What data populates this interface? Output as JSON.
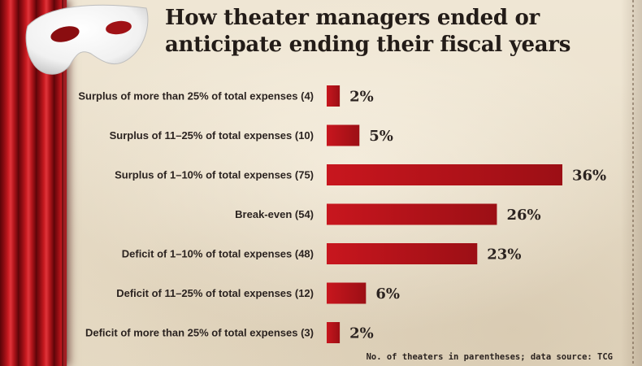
{
  "title_lines": [
    "How theater managers ended or",
    "anticipate ending their fiscal years"
  ],
  "chart_data": {
    "type": "bar",
    "orientation": "horizontal",
    "categories": [
      "Surplus of more than 25% of total expenses (4)",
      "Surplus of 11–25% of total expenses (10)",
      "Surplus of  1–10% of total expenses (75)",
      "Break-even (54)",
      "Deficit of 1–10% of total expenses (48)",
      "Deficit of 11–25% of total expenses (12)",
      "Deficit of more than 25% of total expenses (3)"
    ],
    "values": [
      2,
      5,
      36,
      26,
      23,
      6,
      2
    ],
    "value_labels": [
      "2%",
      "5%",
      "36%",
      "26%",
      "23%",
      "6%",
      "2%"
    ],
    "unit": "%",
    "xlim": [
      0,
      36
    ],
    "grid": false,
    "legend": "none"
  },
  "source_note": "No. of theaters in parentheses; data source: TCG",
  "colors": {
    "bar": "#b3141b",
    "curtain": "#c81a20",
    "background": "#eee3cf",
    "text": "#2b2320"
  },
  "icons": [
    "theater-mask-icon"
  ]
}
